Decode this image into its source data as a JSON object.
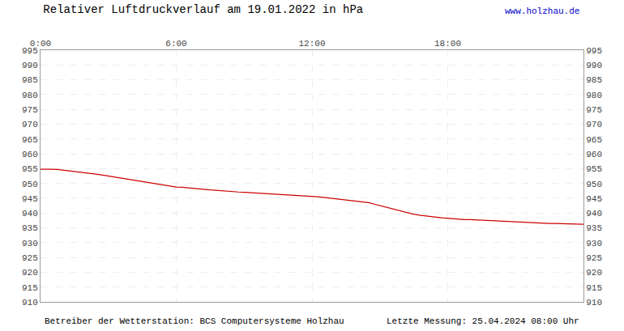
{
  "chart_data": {
    "type": "line",
    "title": "Relativer Luftdruckverlauf am 19.01.2022 in hPa",
    "annotations": [
      {
        "text": "www.holzhau.de",
        "color": "#0000cc"
      },
      {
        "text": "Betreiber der Wetterstation: BCS Computersysteme Holzhau"
      },
      {
        "text": "Letzte Messung: 25.04.2024 08:00 Uhr"
      }
    ],
    "x": [
      0,
      15,
      30,
      45,
      60,
      75,
      90,
      105,
      120,
      135,
      150,
      165,
      180,
      195,
      210,
      225,
      240,
      255,
      270,
      285,
      300,
      315,
      330,
      345,
      360,
      375,
      390,
      405,
      420,
      435,
      450,
      465,
      480,
      495,
      510,
      525,
      540,
      555,
      570,
      585,
      600,
      615,
      630,
      645,
      660,
      675,
      690,
      705,
      720,
      735,
      750,
      765,
      780,
      795,
      810,
      825,
      840,
      855,
      870,
      885,
      900,
      915,
      930,
      945,
      960,
      975,
      990,
      1005,
      1020,
      1035,
      1050,
      1065,
      1080,
      1095,
      1110,
      1125,
      1140,
      1155,
      1170,
      1185,
      1200,
      1215,
      1230,
      1245,
      1260,
      1275,
      1290,
      1305,
      1320,
      1335,
      1350,
      1365,
      1380,
      1395,
      1410,
      1425,
      1440
    ],
    "series": [
      {
        "color": "#cc0000",
        "values": [
          954.8,
          954.9,
          954.8,
          954.7,
          954.5,
          954.3,
          954.1,
          953.9,
          953.7,
          953.4,
          953.1,
          952.8,
          952.5,
          952.2,
          951.9,
          951.6,
          951.3,
          951.0,
          950.7,
          950.3,
          950.0,
          949.6,
          949.3,
          949.0,
          948.8,
          948.7,
          948.5,
          948.3,
          948.1,
          948.0,
          947.8,
          947.7,
          947.5,
          947.4,
          947.3,
          947.1,
          947.0,
          946.9,
          946.8,
          946.7,
          946.5,
          946.4,
          946.3,
          946.2,
          946.1,
          946.0,
          945.9,
          945.8,
          945.7,
          945.5,
          945.3,
          945.1,
          944.9,
          944.7,
          944.5,
          944.3,
          944.1,
          943.9,
          943.5,
          943.0,
          942.5,
          942.0,
          941.5,
          941.0,
          940.5,
          940.0,
          939.6,
          939.3,
          939.0,
          938.8,
          938.6,
          938.4,
          938.2,
          938.0,
          937.9,
          937.8,
          937.8,
          937.7,
          937.7,
          937.6,
          937.5,
          937.4,
          937.3,
          937.2,
          937.1,
          937.0,
          936.9,
          936.8,
          936.7,
          936.6,
          936.5,
          936.5,
          936.4,
          936.4,
          936.3,
          936.3,
          936.2
        ]
      }
    ],
    "xlim": [
      0,
      1440
    ],
    "xticks": [
      {
        "value": 0,
        "label": "0:00"
      },
      {
        "value": 360,
        "label": "6:00"
      },
      {
        "value": 720,
        "label": "12:00"
      },
      {
        "value": 1080,
        "label": "18:00"
      }
    ],
    "ylim": [
      910,
      995
    ],
    "yticks": [
      910,
      915,
      920,
      925,
      930,
      935,
      940,
      945,
      950,
      955,
      960,
      965,
      970,
      975,
      980,
      985,
      990,
      995
    ],
    "y2lim": [
      910,
      995
    ],
    "y2ticks": [
      910,
      915,
      920,
      925,
      930,
      935,
      940,
      945,
      950,
      955,
      960,
      965,
      970,
      975,
      980,
      985,
      990,
      995
    ],
    "grid": true
  }
}
